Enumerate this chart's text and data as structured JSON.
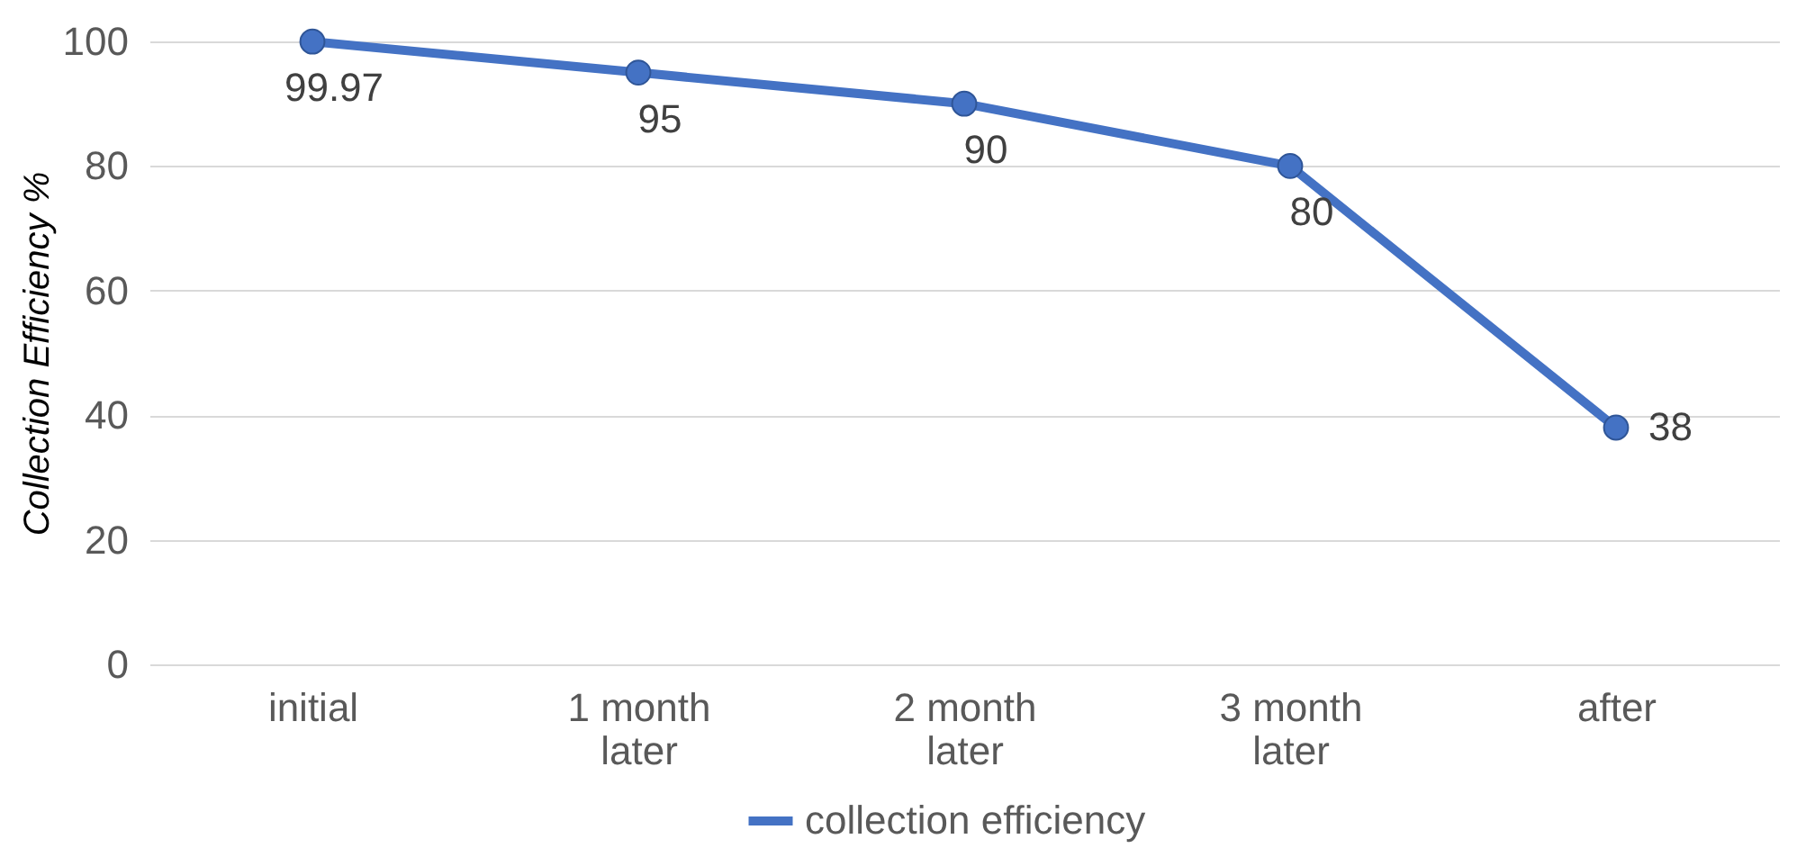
{
  "chart_data": {
    "type": "line",
    "ylabel": "Collection Efficiency %",
    "categories": [
      "initial",
      "1 month later",
      "2 month later",
      "3 month later",
      "after"
    ],
    "series": [
      {
        "name": "collection efficiency",
        "color": "#4472c4",
        "values": [
          99.97,
          95,
          90,
          80,
          38
        ]
      }
    ],
    "ylim": [
      0,
      100
    ],
    "yticks": [
      0,
      20,
      40,
      60,
      80,
      100
    ],
    "grid": "y",
    "legend": "bottom",
    "marker": "circle",
    "line_style": "solid",
    "data_labels": true
  }
}
